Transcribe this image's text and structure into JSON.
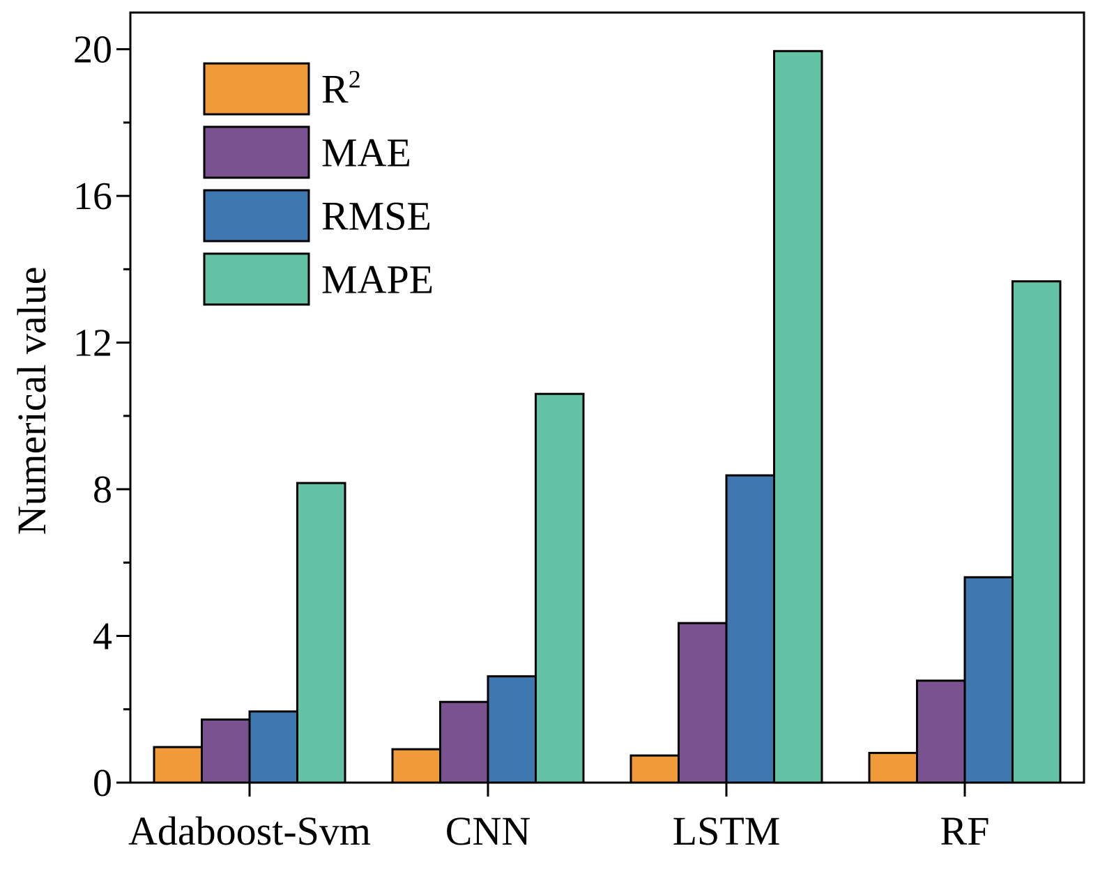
{
  "chart_data": {
    "type": "bar",
    "title": "",
    "xlabel": "",
    "ylabel": "Numerical value",
    "categories": [
      "Adaboost-Svm",
      "CNN",
      "LSTM",
      "RF"
    ],
    "series": [
      {
        "name": "R",
        "superscript": "2",
        "color": "#F09A3A",
        "values": [
          0.97,
          0.91,
          0.74,
          0.81
        ]
      },
      {
        "name": "MAE",
        "color": "#7A528F",
        "values": [
          1.72,
          2.2,
          4.35,
          2.78
        ]
      },
      {
        "name": "RMSE",
        "color": "#3F78B0",
        "values": [
          1.94,
          2.9,
          8.38,
          5.6
        ]
      },
      {
        "name": "MAPE",
        "color": "#64C3A4",
        "values": [
          8.17,
          10.6,
          19.95,
          13.67
        ]
      }
    ],
    "ylim": [
      0,
      21
    ],
    "yticks": [
      "0",
      "4",
      "8",
      "12",
      "16",
      "20"
    ],
    "grid": false,
    "legend_position": "top-left"
  }
}
